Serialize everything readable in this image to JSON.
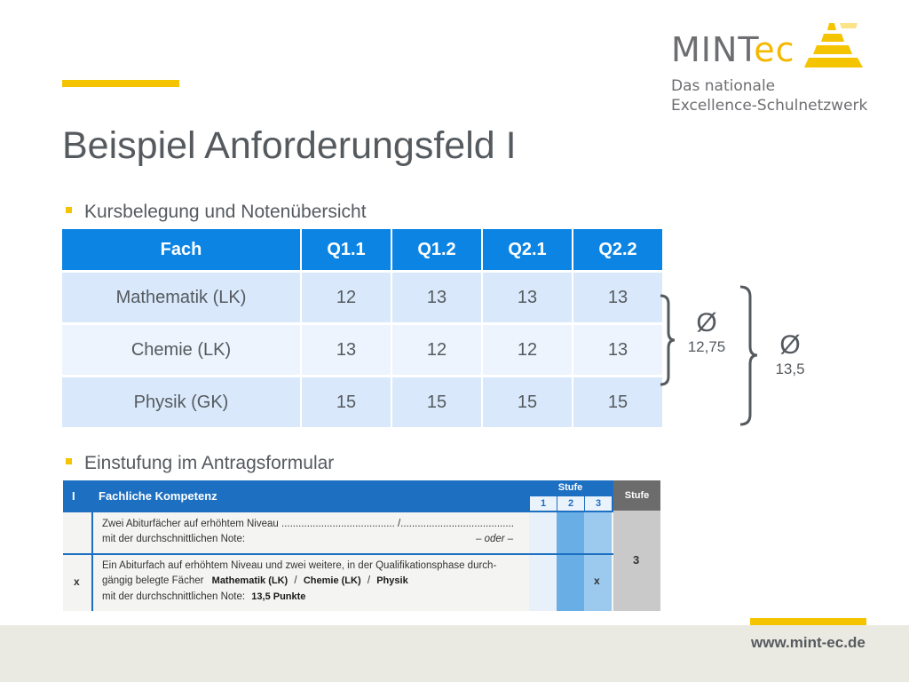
{
  "logo": {
    "word_main": "MINT",
    "word_accent": "ec",
    "subtitle_line1": "Das nationale",
    "subtitle_line2": "Excellence-Schulnetzwerk",
    "icon": "pyramid-logo-icon"
  },
  "title": "Beispiel Anforderungsfeld I",
  "bullets": [
    "Kursbelegung und Notenübersicht",
    "Einstufung im Antragsformular"
  ],
  "table": {
    "headers": [
      "Fach",
      "Q1.1",
      "Q1.2",
      "Q2.1",
      "Q2.2"
    ],
    "rows": [
      [
        "Mathematik (LK)",
        "12",
        "13",
        "13",
        "13"
      ],
      [
        "Chemie (LK)",
        "13",
        "12",
        "12",
        "13"
      ],
      [
        "Physik (GK)",
        "15",
        "15",
        "15",
        "15"
      ]
    ]
  },
  "averages": {
    "inner": {
      "symbol": "Ø",
      "value": "12,75"
    },
    "outer": {
      "symbol": "Ø",
      "value": "13,5"
    }
  },
  "form": {
    "section_number": "I",
    "section_title": "Fachliche Kompetenz",
    "stufe_label": "Stufe",
    "stufe_numbers": [
      "1",
      "2",
      "3"
    ],
    "stufe_result_label": "Stufe",
    "row1_line1": "Zwei Abiturfächer auf erhöhtem Niveau ........................................ /........................................",
    "row1_line2": "mit der durchschnittlichen Note:",
    "row1_or": "– oder –",
    "row2_marker": "x",
    "row2_line1": "Ein Abiturfach auf erhöhtem Niveau und zwei weitere, in der Qualifikationsphase durch-",
    "row2_line2_prefix": "gängig belegte Fächer",
    "row2_subject1": "Mathematik (LK)",
    "row2_subject2": "Chemie (LK)",
    "row2_subject3": "Physik",
    "row2_line3_prefix": "mit der durchschnittlichen Note:",
    "row2_note": "13,5 Punkte",
    "row2_stufe_mark": "x",
    "stufe_result": "3"
  },
  "colors": {
    "accent": "#f5c400",
    "header_blue": "#0b84e3",
    "text_gray": "#555a5f"
  },
  "footer": {
    "url": "www.mint-ec.de"
  }
}
